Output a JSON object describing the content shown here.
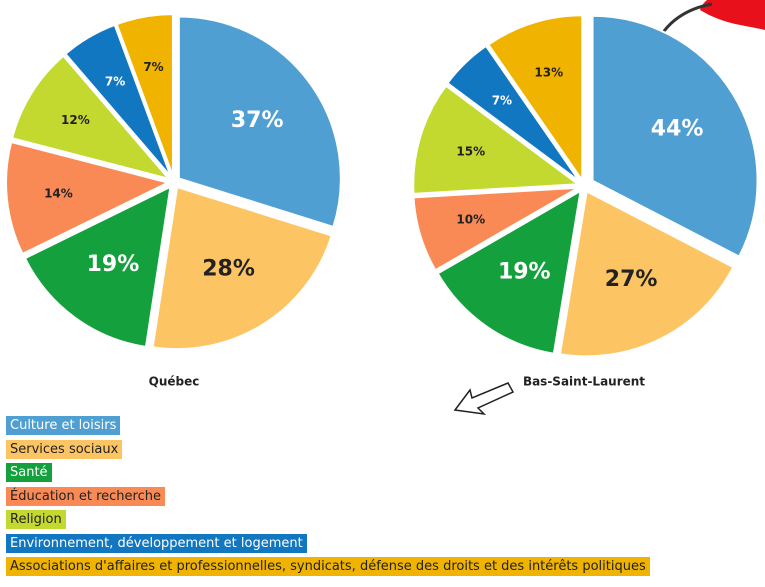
{
  "chart_data": [
    {
      "type": "pie",
      "title": "Québec",
      "values": [
        37,
        28,
        19,
        14,
        12,
        7,
        7
      ],
      "value_labels": [
        "37%",
        "28%",
        "19%",
        "14%",
        "12%",
        "7%",
        "7%"
      ]
    },
    {
      "type": "pie",
      "title": "Bas-Saint-Laurent",
      "values": [
        44,
        27,
        19,
        10,
        15,
        7,
        13
      ],
      "value_labels": [
        "44%",
        "27%",
        "19%",
        "10%",
        "15%",
        "7%",
        "13%"
      ]
    }
  ],
  "legend": {
    "labels": [
      "Culture et loisirs",
      "Services sociaux",
      "Santé",
      "Éducation et recherche",
      "Religion",
      "Environnement, développement et logement",
      "Associations d'affaires et professionnelles, syndicats, défense des droits et des intérêts politiques"
    ],
    "colors": [
      "#4f9fd3",
      "#fdc463",
      "#14a03c",
      "#f98a55",
      "#c3d92f",
      "#1277c1",
      "#f0b400"
    ]
  }
}
